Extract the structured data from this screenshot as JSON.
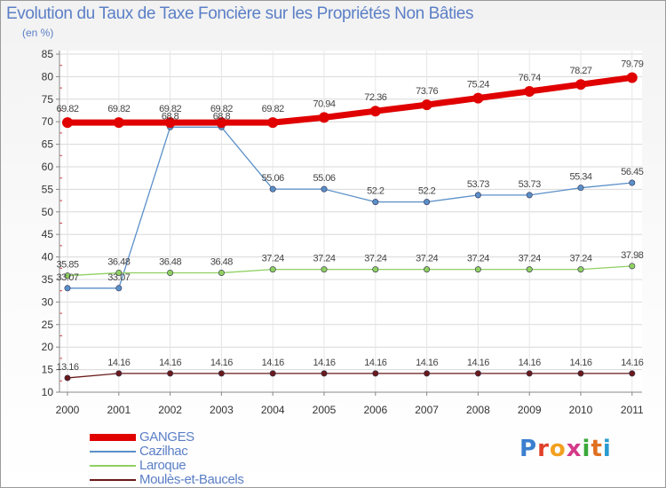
{
  "title": "Evolution du Taux de Taxe Foncière sur les Propriétés Non Bâties",
  "unit_label": "(en %)",
  "logo": {
    "text": "Proxiti",
    "letters": [
      "P",
      "r",
      "o",
      "x",
      "i",
      "t",
      "i"
    ],
    "colors": [
      "#3a7fd0",
      "#e0402a",
      "#f2a020",
      "#d43a8a",
      "#3aa83a",
      "#e07020",
      "#2a9ad0"
    ]
  },
  "chart_data": {
    "type": "line",
    "title": "Evolution du Taux de Taxe Foncière sur les Propriétés Non Bâties",
    "ylabel": "(en %)",
    "xlabel": "",
    "x": [
      "2000",
      "2001",
      "2002",
      "2003",
      "2004",
      "2005",
      "2006",
      "2007",
      "2008",
      "2009",
      "2010",
      "2011"
    ],
    "ylim": [
      10,
      85
    ],
    "yticks": [
      "10",
      "15",
      "20",
      "25",
      "30",
      "35",
      "40",
      "45",
      "50",
      "55",
      "60",
      "65",
      "70",
      "75",
      "80",
      "85"
    ],
    "grid": "horizontal",
    "series": [
      {
        "name": "GANGES",
        "color": "#e00000",
        "width": 7,
        "marker": 6,
        "values": [
          69.82,
          69.82,
          69.82,
          69.82,
          69.82,
          70.94,
          72.36,
          73.76,
          75.24,
          76.74,
          78.27,
          79.79
        ],
        "labels": [
          "69.82",
          "69.82",
          "69.82",
          "69.82",
          "69.82",
          "70.94",
          "72.36",
          "73.76",
          "75.24",
          "76.74",
          "78.27",
          "79.79"
        ]
      },
      {
        "name": "Cazilhac",
        "color": "#5a8fc8",
        "width": 1.3,
        "marker": 3.2,
        "values": [
          33.07,
          33.07,
          68.8,
          68.8,
          55.06,
          55.06,
          52.2,
          52.2,
          53.73,
          53.73,
          55.34,
          56.45
        ],
        "labels": [
          "33.07",
          "33.07",
          "68.8",
          "68.8",
          "55.06",
          "55.06",
          "52.2",
          "52.2",
          "53.73",
          "53.73",
          "55.34",
          "56.45"
        ]
      },
      {
        "name": "Laroque",
        "color": "#8fd060",
        "width": 1.3,
        "marker": 3.2,
        "values": [
          35.85,
          36.48,
          36.48,
          36.48,
          37.24,
          37.24,
          37.24,
          37.24,
          37.24,
          37.24,
          37.24,
          37.98
        ],
        "labels": [
          "35.85",
          "36.48",
          "36.48",
          "36.48",
          "37.24",
          "37.24",
          "37.24",
          "37.24",
          "37.24",
          "37.24",
          "37.24",
          "37.98"
        ]
      },
      {
        "name": "Moulès-et-Baucels",
        "color": "#6a1a1a",
        "width": 1.3,
        "marker": 3.2,
        "values": [
          13.16,
          14.16,
          14.16,
          14.16,
          14.16,
          14.16,
          14.16,
          14.16,
          14.16,
          14.16,
          14.16,
          14.16
        ],
        "labels": [
          "13.16",
          "14.16",
          "14.16",
          "14.16",
          "14.16",
          "14.16",
          "14.16",
          "14.16",
          "14.16",
          "14.16",
          "14.16",
          "14.16"
        ]
      }
    ]
  }
}
